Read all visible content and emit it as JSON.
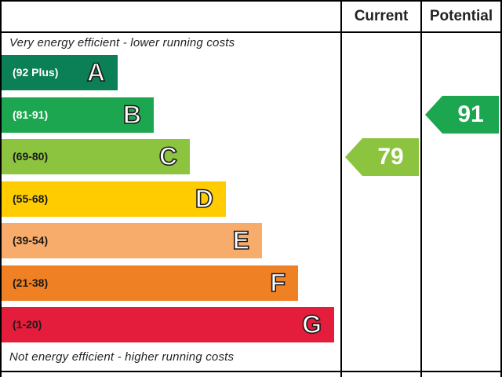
{
  "header": {
    "current_label": "Current",
    "potential_label": "Potential"
  },
  "captions": {
    "top": "Very energy efficient - lower running costs",
    "bottom": "Not energy efficient - higher running costs"
  },
  "chart_data": {
    "type": "bar",
    "bands": [
      {
        "letter": "A",
        "range": "(92 Plus)",
        "color": "#0b7f55",
        "text_color": "#ffffff"
      },
      {
        "letter": "B",
        "range": "(81-91)",
        "color": "#1ba64f",
        "text_color": "#ffffff"
      },
      {
        "letter": "C",
        "range": "(69-80)",
        "color": "#8cc43f",
        "text_color": "#1a1a1a"
      },
      {
        "letter": "D",
        "range": "(55-68)",
        "color": "#ffcc00",
        "text_color": "#1a1a1a"
      },
      {
        "letter": "E",
        "range": "(39-54)",
        "color": "#f7ac6b",
        "text_color": "#1a1a1a"
      },
      {
        "letter": "F",
        "range": "(21-38)",
        "color": "#ef8023",
        "text_color": "#1a1a1a"
      },
      {
        "letter": "G",
        "range": "(1-20)",
        "color": "#e31d3b",
        "text_color": "#1a1a1a"
      }
    ],
    "current": {
      "value": 79,
      "band": "C",
      "color": "#8cc43f"
    },
    "potential": {
      "value": 91,
      "band": "B",
      "color": "#1ba64f"
    }
  }
}
